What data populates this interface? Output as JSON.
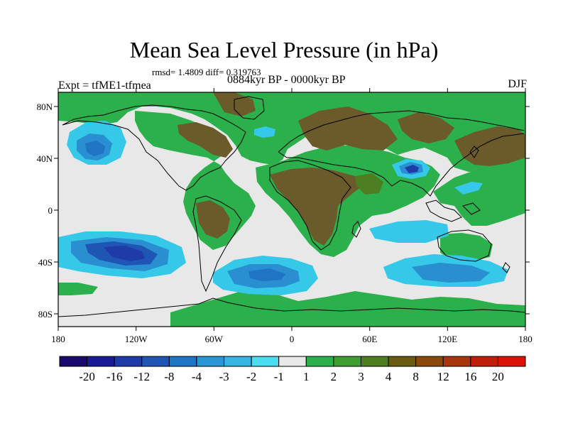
{
  "title": "Mean Sea Level Pressure (in hPa)",
  "stats": "rmsd= 1.4809 diff= 0.319763",
  "left_string": "Expt = tfME1-tfmea",
  "center_string": "0884kyr BP - 0000kyr BP",
  "right_string": "DJF",
  "lat_ticks": [
    "80N",
    "40N",
    "0",
    "40S",
    "80S"
  ],
  "lon_ticks": [
    "180",
    "120W",
    "60W",
    "0",
    "60E",
    "120E",
    "180"
  ],
  "colorbar": {
    "labels": [
      "-20",
      "-16",
      "-12",
      "-8",
      "-4",
      "-3",
      "-2",
      "-1",
      "1",
      "2",
      "3",
      "4",
      "8",
      "12",
      "16",
      "20"
    ],
    "colors": [
      "#1a0a6e",
      "#1a1a96",
      "#1f3ba8",
      "#1f55b4",
      "#1f74c4",
      "#2a96d4",
      "#35b6e2",
      "#4adcf0",
      "#e8e8e8",
      "#2cb04c",
      "#3e9e32",
      "#4e7e22",
      "#6a5a12",
      "#8a4a0e",
      "#a8360c",
      "#c01e0a",
      "#dc1208"
    ]
  },
  "colors": {
    "background": "#e8e8e8",
    "green": "#2cb04c",
    "dark_green": "#4e7e22",
    "brown": "#6b5a2a",
    "light_blue": "#35c8e8",
    "mid_blue": "#2a8fd0",
    "dark_blue": "#1f4fb0"
  }
}
